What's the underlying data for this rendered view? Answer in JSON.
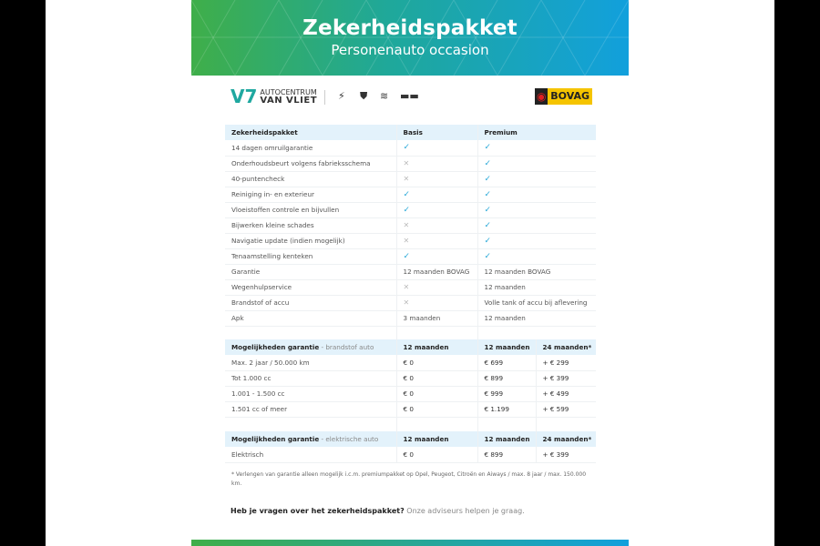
{
  "banner": {
    "title": "Zekerheidspakket",
    "subtitle": "Personenauto occasion"
  },
  "logos": {
    "dealer_line1": "AUTOCENTRUM",
    "dealer_line2": "VAN VLIET",
    "brands": [
      "opel-logo",
      "peugeot-logo",
      "citroen-logo",
      "aiways-logo"
    ],
    "bovag": "BOVAG"
  },
  "package_table": {
    "headers": [
      "Zekerheidspakket",
      "Basis",
      "Premium"
    ],
    "rows": [
      {
        "label": "14 dagen omruilgarantie",
        "basis": "check",
        "premium": "check"
      },
      {
        "label": "Onderhoudsbeurt volgens fabrieksschema",
        "basis": "cross",
        "premium": "check"
      },
      {
        "label": "40-puntencheck",
        "basis": "cross",
        "premium": "check"
      },
      {
        "label": "Reiniging in- en exterieur",
        "basis": "check",
        "premium": "check"
      },
      {
        "label": "Vloeistoffen controle en bijvullen",
        "basis": "check",
        "premium": "check"
      },
      {
        "label": "Bijwerken kleine schades",
        "basis": "cross",
        "premium": "check"
      },
      {
        "label": "Navigatie update (indien mogelijk)",
        "basis": "cross",
        "premium": "check"
      },
      {
        "label": "Tenaamstelling kenteken",
        "basis": "check",
        "premium": "check"
      },
      {
        "label": "Garantie",
        "basis": "12 maanden BOVAG",
        "premium": "12 maanden BOVAG"
      },
      {
        "label": "Wegenhulpservice",
        "basis": "cross",
        "premium": "12 maanden"
      },
      {
        "label": "Brandstof of accu",
        "basis": "cross",
        "premium": "Volle tank of accu bij aflevering"
      },
      {
        "label": "Apk",
        "basis": "3 maanden",
        "premium": "12 maanden"
      }
    ]
  },
  "fuel_table": {
    "title": "Mogelijkheden garantie",
    "subtitle": " - brandstof auto",
    "headers": [
      "12 maanden",
      "12 maanden",
      "24 maanden*"
    ],
    "rows": [
      [
        "Max. 2 jaar / 50.000 km",
        "€ 0",
        "€ 699",
        "+ € 299"
      ],
      [
        "Tot 1.000 cc",
        "€ 0",
        "€ 899",
        "+ € 399"
      ],
      [
        "1.001 - 1.500 cc",
        "€ 0",
        "€ 999",
        "+ € 499"
      ],
      [
        "1.501 cc of meer",
        "€ 0",
        "€ 1.199",
        "+ € 599"
      ]
    ]
  },
  "electric_table": {
    "title": "Mogelijkheden garantie",
    "subtitle": " - elektrische auto",
    "headers": [
      "12 maanden",
      "12 maanden",
      "24 maanden*"
    ],
    "rows": [
      [
        "Elektrisch",
        "€ 0",
        "€ 899",
        "+ € 399"
      ]
    ]
  },
  "footnote": "* Verlengen van garantie alleen mogelijk i.c.m. premiumpakket op Opel, Peugeot, Citroën en Aiways / max. 8 jaar / max. 150.000 km.",
  "question": {
    "bold": "Heb je vragen over het zekerheidspakket?",
    "rest": " Onze adviseurs helpen je graag."
  },
  "colors": {
    "check": "#2aa9d8",
    "header_bg": "#e3f2fb",
    "gradient_start": "#3fae49",
    "gradient_end": "#12a0dc"
  }
}
